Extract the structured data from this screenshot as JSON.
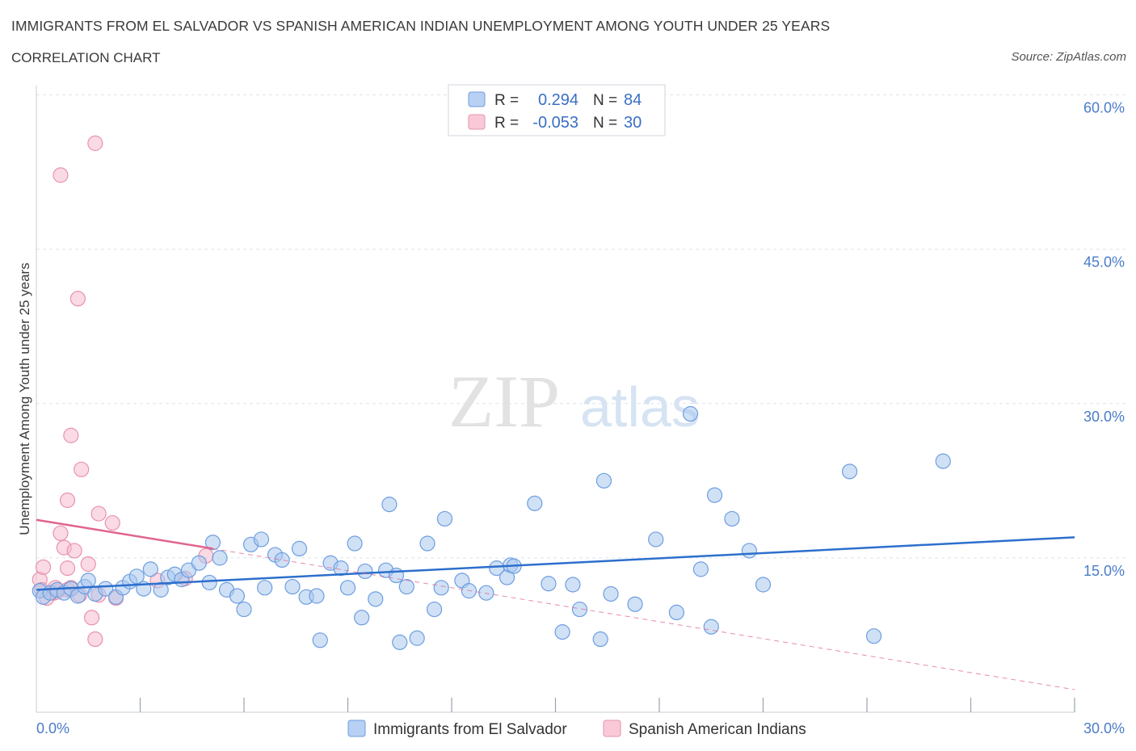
{
  "title": "IMMIGRANTS FROM EL SALVADOR VS SPANISH AMERICAN INDIAN UNEMPLOYMENT AMONG YOUTH UNDER 25 YEARS",
  "subtitle": "CORRELATION CHART",
  "source": "Source: ZipAtlas.com",
  "watermark": {
    "zip": "ZIP",
    "atlas": "atlas"
  },
  "colors": {
    "blue_fill": "#a9c8ef",
    "blue_stroke": "#6d9ee0",
    "blue_line": "#2d6fcc",
    "pink_fill": "#f6bccd",
    "pink_stroke": "#e893ad",
    "pink_line": "#e0648d",
    "grid": "#dde3ea",
    "axis_text": "#4a7cc9"
  },
  "legend": {
    "rows": [
      {
        "r_label": "R =",
        "r_value": "0.294",
        "n_label": "N =",
        "n_value": "84"
      },
      {
        "r_label": "R =",
        "r_value": "-0.053",
        "n_label": "N =",
        "n_value": "30"
      }
    ]
  },
  "chart_data": {
    "type": "scatter",
    "title": "IMMIGRANTS FROM EL SALVADOR VS SPANISH AMERICAN INDIAN UNEMPLOYMENT AMONG YOUTH UNDER 25 YEARS",
    "xlabel": "",
    "ylabel": "Unemployment Among Youth under 25 years",
    "xlim": [
      0,
      30
    ],
    "ylim": [
      0,
      60
    ],
    "x_tick_labels": [
      {
        "value": 0,
        "label": "0.0%"
      },
      {
        "value": 30,
        "label": "30.0%"
      }
    ],
    "y_tick_labels": [
      {
        "value": 15,
        "label": "15.0%"
      },
      {
        "value": 30,
        "label": "30.0%"
      },
      {
        "value": 45,
        "label": "45.0%"
      },
      {
        "value": 60,
        "label": "60.0%"
      }
    ],
    "series": [
      {
        "name": "Immigrants from El Salvador",
        "color": "blue",
        "trend": {
          "x": [
            0,
            30
          ],
          "y": [
            11.9,
            17.0
          ],
          "dashed_to": null
        },
        "points": [
          [
            0.1,
            11.8
          ],
          [
            0.2,
            11.2
          ],
          [
            0.4,
            11.6
          ],
          [
            0.6,
            11.9
          ],
          [
            0.8,
            11.6
          ],
          [
            1.0,
            12.0
          ],
          [
            1.2,
            11.3
          ],
          [
            1.4,
            12.2
          ],
          [
            1.5,
            12.8
          ],
          [
            1.7,
            11.5
          ],
          [
            2.0,
            12.0
          ],
          [
            2.3,
            11.2
          ],
          [
            2.5,
            12.1
          ],
          [
            2.7,
            12.7
          ],
          [
            2.9,
            13.2
          ],
          [
            3.1,
            12.0
          ],
          [
            3.3,
            13.9
          ],
          [
            3.6,
            11.9
          ],
          [
            3.8,
            13.1
          ],
          [
            4.0,
            13.4
          ],
          [
            4.2,
            12.9
          ],
          [
            4.4,
            13.8
          ],
          [
            4.7,
            14.5
          ],
          [
            5.0,
            12.6
          ],
          [
            5.1,
            16.5
          ],
          [
            5.3,
            15.0
          ],
          [
            5.5,
            11.9
          ],
          [
            5.8,
            11.3
          ],
          [
            6.0,
            10.0
          ],
          [
            6.2,
            16.3
          ],
          [
            6.5,
            16.8
          ],
          [
            6.6,
            12.1
          ],
          [
            6.9,
            15.3
          ],
          [
            7.1,
            14.8
          ],
          [
            7.4,
            12.2
          ],
          [
            7.6,
            15.9
          ],
          [
            7.8,
            11.2
          ],
          [
            8.1,
            11.3
          ],
          [
            8.2,
            7.0
          ],
          [
            8.5,
            14.5
          ],
          [
            8.8,
            14.0
          ],
          [
            9.0,
            12.1
          ],
          [
            9.2,
            16.4
          ],
          [
            9.4,
            9.2
          ],
          [
            9.5,
            13.7
          ],
          [
            9.8,
            11.0
          ],
          [
            10.1,
            13.8
          ],
          [
            10.2,
            20.2
          ],
          [
            10.4,
            13.3
          ],
          [
            10.5,
            6.8
          ],
          [
            10.7,
            12.2
          ],
          [
            11.0,
            7.2
          ],
          [
            11.3,
            16.4
          ],
          [
            11.5,
            10.0
          ],
          [
            11.7,
            12.1
          ],
          [
            11.8,
            18.8
          ],
          [
            12.3,
            12.8
          ],
          [
            12.5,
            11.8
          ],
          [
            13.0,
            11.6
          ],
          [
            13.3,
            14.0
          ],
          [
            13.6,
            13.1
          ],
          [
            13.7,
            14.3
          ],
          [
            13.8,
            14.2
          ],
          [
            14.4,
            20.3
          ],
          [
            14.8,
            12.5
          ],
          [
            15.2,
            7.8
          ],
          [
            15.5,
            12.4
          ],
          [
            15.7,
            10.0
          ],
          [
            16.3,
            7.1
          ],
          [
            16.4,
            22.5
          ],
          [
            16.6,
            11.5
          ],
          [
            17.3,
            10.5
          ],
          [
            17.9,
            16.8
          ],
          [
            18.5,
            9.7
          ],
          [
            18.9,
            29.0
          ],
          [
            19.2,
            13.9
          ],
          [
            19.5,
            8.3
          ],
          [
            19.6,
            21.1
          ],
          [
            20.1,
            18.8
          ],
          [
            20.6,
            15.7
          ],
          [
            21.0,
            12.4
          ],
          [
            23.5,
            23.4
          ],
          [
            24.2,
            7.4
          ],
          [
            26.2,
            24.4
          ]
        ]
      },
      {
        "name": "Spanish American Indians",
        "color": "pink",
        "trend": {
          "x": [
            0,
            5.1
          ],
          "y": [
            18.7,
            15.9
          ],
          "dashed_to": {
            "x": 30,
            "y": 2.2
          }
        },
        "points": [
          [
            0.1,
            12.9
          ],
          [
            0.15,
            11.9
          ],
          [
            0.2,
            14.1
          ],
          [
            0.3,
            11.1
          ],
          [
            0.5,
            11.6
          ],
          [
            0.6,
            11.7
          ],
          [
            0.7,
            52.2
          ],
          [
            0.7,
            17.4
          ],
          [
            0.8,
            16.0
          ],
          [
            0.9,
            11.9
          ],
          [
            0.9,
            14.0
          ],
          [
            0.9,
            20.6
          ],
          [
            1.0,
            26.9
          ],
          [
            1.0,
            12.1
          ],
          [
            1.1,
            15.7
          ],
          [
            1.2,
            40.2
          ],
          [
            1.25,
            11.4
          ],
          [
            1.3,
            23.6
          ],
          [
            1.5,
            14.4
          ],
          [
            1.6,
            9.2
          ],
          [
            1.7,
            55.3
          ],
          [
            1.7,
            7.1
          ],
          [
            1.8,
            11.4
          ],
          [
            1.8,
            19.3
          ],
          [
            2.2,
            18.4
          ],
          [
            2.3,
            11.1
          ],
          [
            3.5,
            12.8
          ],
          [
            4.3,
            13.0
          ],
          [
            4.9,
            15.2
          ],
          [
            0.55,
            12.1
          ]
        ]
      }
    ]
  },
  "bottom_legend": [
    {
      "label": "Immigrants from El Salvador"
    },
    {
      "label": "Spanish American Indians"
    }
  ]
}
